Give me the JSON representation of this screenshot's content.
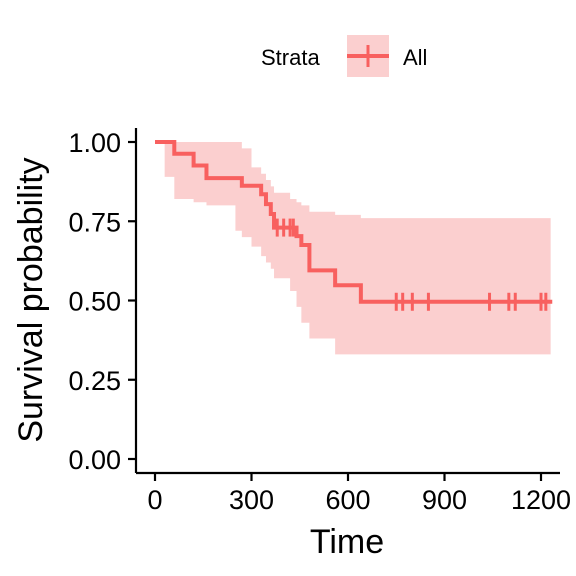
{
  "chart_data": {
    "type": "line",
    "subtype": "kaplan-meier survival curve with confidence band",
    "xlabel": "Time",
    "ylabel": "Survival probability",
    "xlim": [
      0,
      1250
    ],
    "ylim": [
      0,
      1
    ],
    "xticks": [
      0,
      300,
      600,
      900,
      1200
    ],
    "xtick_labels": [
      "0",
      "300",
      "600",
      "900",
      "1200"
    ],
    "yticks": [
      0,
      0.25,
      0.5,
      0.75,
      1.0
    ],
    "ytick_labels": [
      "0.00",
      "0.25",
      "0.50",
      "0.75",
      "1.00"
    ],
    "grid": false,
    "legend": {
      "position": "top",
      "title": "Strata",
      "entries": [
        "All"
      ]
    },
    "colors": {
      "line": "#F8605F",
      "band": "#FBCFCF"
    },
    "series": [
      {
        "name": "All",
        "step_x": [
          0,
          60,
          120,
          160,
          270,
          330,
          345,
          360,
          370,
          440,
          455,
          480,
          560,
          640,
          1235
        ],
        "step_y": [
          1.0,
          0.963,
          0.926,
          0.886,
          0.862,
          0.835,
          0.804,
          0.773,
          0.73,
          0.703,
          0.675,
          0.595,
          0.548,
          0.496,
          0.496
        ],
        "ci_x": [
          0,
          30,
          60,
          120,
          160,
          250,
          270,
          300,
          330,
          345,
          360,
          370,
          420,
          440,
          455,
          480,
          560,
          640,
          1230
        ],
        "ci_upper": [
          1.0,
          1.0,
          1.0,
          1.0,
          1.0,
          1.0,
          0.98,
          0.92,
          0.9,
          0.88,
          0.86,
          0.84,
          0.82,
          0.81,
          0.8,
          0.78,
          0.77,
          0.76,
          0.76
        ],
        "ci_lower": [
          1.0,
          1.0,
          0.89,
          0.82,
          0.81,
          0.8,
          0.72,
          0.7,
          0.67,
          0.64,
          0.62,
          0.6,
          0.57,
          0.53,
          0.48,
          0.43,
          0.38,
          0.33,
          0.33
        ],
        "censor_points": [
          {
            "x": 380,
            "y": 0.73
          },
          {
            "x": 400,
            "y": 0.73
          },
          {
            "x": 420,
            "y": 0.73
          },
          {
            "x": 430,
            "y": 0.73
          },
          {
            "x": 750,
            "y": 0.496
          },
          {
            "x": 770,
            "y": 0.496
          },
          {
            "x": 800,
            "y": 0.496
          },
          {
            "x": 850,
            "y": 0.496
          },
          {
            "x": 1040,
            "y": 0.496
          },
          {
            "x": 1100,
            "y": 0.496
          },
          {
            "x": 1120,
            "y": 0.496
          },
          {
            "x": 1200,
            "y": 0.496
          },
          {
            "x": 1215,
            "y": 0.496
          }
        ]
      }
    ]
  }
}
